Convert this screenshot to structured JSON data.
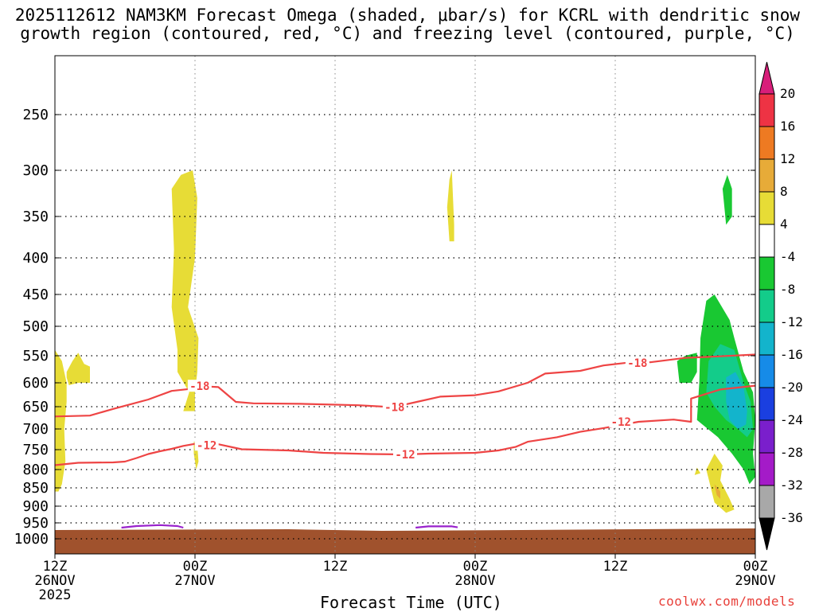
{
  "title_line1": "2025112612 NAM3KM Forecast Omega (shaded, μbar/s) for KCRL with dendritic snow",
  "title_line2": "growth region (contoured, red, °C) and freezing level (contoured, purple, °C)",
  "xlabel": "Forecast Time (UTC)",
  "credit": "coolwx.com/models",
  "chart_data": {
    "type": "time-height cross-section",
    "y_axis": {
      "label": "",
      "ticks": [
        250,
        300,
        350,
        400,
        450,
        500,
        550,
        600,
        650,
        700,
        750,
        800,
        850,
        900,
        950,
        1000
      ],
      "unit": "hPa",
      "reversed": true
    },
    "x_axis": {
      "ticks": [
        {
          "hour": 0,
          "line1": "12Z",
          "line2": "26NOV",
          "line3": "2025"
        },
        {
          "hour": 12,
          "line1": "00Z",
          "line2": "27NOV",
          "line3": ""
        },
        {
          "hour": 24,
          "line1": "12Z",
          "line2": "",
          "line3": ""
        },
        {
          "hour": 36,
          "line1": "00Z",
          "line2": "28NOV",
          "line3": ""
        },
        {
          "hour": 48,
          "line1": "12Z",
          "line2": "",
          "line3": ""
        },
        {
          "hour": 60,
          "line1": "00Z",
          "line2": "29NOV",
          "line3": ""
        }
      ],
      "range_hours": [
        0,
        60
      ]
    },
    "grid": true,
    "colorbar": {
      "labels": [
        "20",
        "16",
        "12",
        "8",
        "4",
        "-4",
        "-8",
        "-12",
        "-16",
        "-20",
        "-24",
        "-28",
        "-32",
        "-36"
      ],
      "colors": [
        "#d81e7a",
        "#ee3344",
        "#ee7a22",
        "#e7ab38",
        "#e7dc36",
        "#ffffff",
        "#19c832",
        "#13cc8a",
        "#13b4cc",
        "#168be8",
        "#1a3fe0",
        "#7a1fcc",
        "#a41bc8",
        "#a8a8a8",
        "#000000"
      ]
    },
    "contours": [
      {
        "name": "-18",
        "color": "#ee4444",
        "points": [
          [
            0,
            672
          ],
          [
            3,
            670
          ],
          [
            5,
            655
          ],
          [
            8,
            635
          ],
          [
            10,
            617
          ],
          [
            11.5,
            613
          ],
          [
            12.5,
            607
          ],
          [
            14,
            609
          ],
          [
            15.5,
            640
          ],
          [
            17,
            643
          ],
          [
            21,
            644
          ],
          [
            26,
            647
          ],
          [
            29,
            651
          ],
          [
            31,
            640
          ],
          [
            33,
            629
          ],
          [
            36,
            626
          ],
          [
            38,
            618
          ],
          [
            40.5,
            600
          ],
          [
            42,
            583
          ],
          [
            45,
            578
          ],
          [
            47,
            568
          ],
          [
            49,
            563
          ],
          [
            50,
            560
          ],
          [
            51,
            562
          ],
          [
            54,
            554
          ],
          [
            57,
            551
          ],
          [
            60,
            548
          ]
        ],
        "labels": [
          [
            12.4,
            607
          ],
          [
            29.1,
            651
          ],
          [
            49.9,
            563
          ]
        ]
      },
      {
        "name": "-12",
        "color": "#ee4444",
        "points": [
          [
            0,
            789
          ],
          [
            2,
            783
          ],
          [
            5,
            782
          ],
          [
            6,
            780
          ],
          [
            7,
            771
          ],
          [
            8,
            761
          ],
          [
            9,
            754
          ],
          [
            10,
            748
          ],
          [
            11,
            741
          ],
          [
            12,
            736
          ],
          [
            14,
            737
          ],
          [
            16,
            749
          ],
          [
            20,
            752
          ],
          [
            23,
            758
          ],
          [
            27,
            761
          ],
          [
            30,
            762
          ],
          [
            32,
            760
          ],
          [
            36,
            758
          ],
          [
            38,
            752
          ],
          [
            39.5,
            743
          ],
          [
            40.5,
            731
          ],
          [
            43,
            720
          ],
          [
            45,
            707
          ],
          [
            47,
            698
          ],
          [
            50,
            684
          ],
          [
            53,
            679
          ],
          [
            54.5,
            684
          ],
          [
            54.5,
            633
          ],
          [
            57,
            614
          ],
          [
            60,
            606
          ]
        ],
        "labels": [
          [
            13,
            739
          ],
          [
            30,
            762
          ],
          [
            48.5,
            684
          ]
        ]
      },
      {
        "name": "0",
        "color": "#9922cc",
        "points": [
          [
            5.7,
            965
          ],
          [
            7,
            960
          ],
          [
            9,
            957
          ],
          [
            10.5,
            960
          ],
          [
            11,
            965
          ]
        ],
        "labels": []
      },
      {
        "name": "0",
        "color": "#9922cc",
        "points": [
          [
            30.9,
            965
          ],
          [
            32,
            961
          ],
          [
            34,
            961
          ],
          [
            34.5,
            964
          ]
        ],
        "labels": []
      }
    ],
    "shaded_regions": [
      {
        "value_range": "4 to 8",
        "color": "#e7dc36",
        "points": [
          [
            11,
            660
          ],
          [
            11.5,
            620
          ],
          [
            10.5,
            580
          ],
          [
            10.5,
            540
          ],
          [
            10,
            470
          ],
          [
            10.2,
            390
          ],
          [
            10,
            320
          ],
          [
            10.8,
            305
          ],
          [
            11.8,
            300
          ],
          [
            12.2,
            330
          ],
          [
            12,
            400
          ],
          [
            11.4,
            470
          ],
          [
            12.3,
            520
          ],
          [
            12.2,
            580
          ],
          [
            12,
            620
          ],
          [
            12,
            660
          ]
        ]
      },
      {
        "value_range": "4 to 8",
        "color": "#e7dc36",
        "points": [
          [
            0,
            540
          ],
          [
            0.6,
            560
          ],
          [
            1,
            600
          ],
          [
            1,
            640
          ],
          [
            0.8,
            700
          ],
          [
            0.9,
            780
          ],
          [
            0.6,
            840
          ],
          [
            0.3,
            860
          ],
          [
            0,
            860
          ]
        ]
      },
      {
        "value_range": "4 to 8",
        "color": "#e7dc36",
        "points": [
          [
            1,
            580
          ],
          [
            1.5,
            560
          ],
          [
            2,
            545
          ],
          [
            2.5,
            565
          ],
          [
            3,
            570
          ],
          [
            3,
            600
          ],
          [
            2,
            600
          ],
          [
            1.2,
            605
          ],
          [
            1,
            590
          ]
        ]
      },
      {
        "value_range": "4 to 8",
        "color": "#e7dc36",
        "points": [
          [
            11.9,
            730
          ],
          [
            12.2,
            740
          ],
          [
            12.3,
            780
          ],
          [
            12.1,
            800
          ],
          [
            11.9,
            760
          ]
        ]
      },
      {
        "value_range": "4 to 8",
        "color": "#e7dc36",
        "points": [
          [
            33.8,
            380
          ],
          [
            33.6,
            340
          ],
          [
            33.8,
            310
          ],
          [
            34,
            300
          ],
          [
            34.2,
            360
          ],
          [
            34.2,
            380
          ]
        ]
      },
      {
        "value_range": "4 to 8",
        "color": "#e7dc36",
        "points": [
          [
            55.8,
            800
          ],
          [
            56.5,
            760
          ],
          [
            57.2,
            790
          ],
          [
            57,
            830
          ],
          [
            57.8,
            880
          ],
          [
            58.2,
            910
          ],
          [
            57.5,
            920
          ],
          [
            56.5,
            890
          ]
        ]
      },
      {
        "value_range": "4 to 8",
        "color": "#e7dc36",
        "points": [
          [
            54.8,
            815
          ],
          [
            55,
            795
          ],
          [
            55.3,
            810
          ]
        ]
      },
      {
        "value_range": "8 to 12",
        "color": "#e7ab38",
        "points": [
          [
            56.5,
            840
          ],
          [
            57,
            860
          ],
          [
            57,
            880
          ],
          [
            56.7,
            870
          ]
        ]
      },
      {
        "value_range": "-8 to -4",
        "color": "#19c832",
        "points": [
          [
            57.5,
            360
          ],
          [
            57.2,
            320
          ],
          [
            57.6,
            305
          ],
          [
            58,
            320
          ],
          [
            58,
            350
          ]
        ]
      },
      {
        "value_range": "-8 to -4",
        "color": "#19c832",
        "points": [
          [
            53.5,
            600
          ],
          [
            53.3,
            560
          ],
          [
            54,
            550
          ],
          [
            55,
            545
          ],
          [
            55,
            580
          ],
          [
            54.5,
            600
          ]
        ]
      },
      {
        "value_range": "-8 to -4",
        "color": "#19c832",
        "points": [
          [
            55,
            680
          ],
          [
            55.2,
            600
          ],
          [
            55.3,
            520
          ],
          [
            55.8,
            460
          ],
          [
            56.5,
            450
          ],
          [
            57.8,
            490
          ],
          [
            58.2,
            520
          ],
          [
            59,
            580
          ],
          [
            59.8,
            620
          ],
          [
            60,
            680
          ],
          [
            59.8,
            760
          ],
          [
            60,
            820
          ],
          [
            59.5,
            840
          ],
          [
            59,
            800
          ],
          [
            58,
            760
          ],
          [
            56.8,
            720
          ]
        ]
      },
      {
        "value_range": "-12 to -8",
        "color": "#13cc8a",
        "points": [
          [
            55.8,
            620
          ],
          [
            56,
            560
          ],
          [
            57,
            530
          ],
          [
            58.2,
            540
          ],
          [
            59,
            600
          ],
          [
            59.6,
            640
          ],
          [
            59.8,
            700
          ],
          [
            59.3,
            720
          ],
          [
            58.5,
            700
          ],
          [
            57.5,
            680
          ],
          [
            56.5,
            650
          ]
        ]
      },
      {
        "value_range": "-16 to -12",
        "color": "#13b4cc",
        "points": [
          [
            57.5,
            640
          ],
          [
            57.5,
            590
          ],
          [
            58.3,
            580
          ],
          [
            59,
            610
          ],
          [
            59.3,
            660
          ],
          [
            59.2,
            690
          ],
          [
            58.5,
            700
          ],
          [
            57.8,
            680
          ]
        ]
      }
    ],
    "terrain": {
      "color": "#a0522d",
      "pressure_top": 970
    }
  }
}
